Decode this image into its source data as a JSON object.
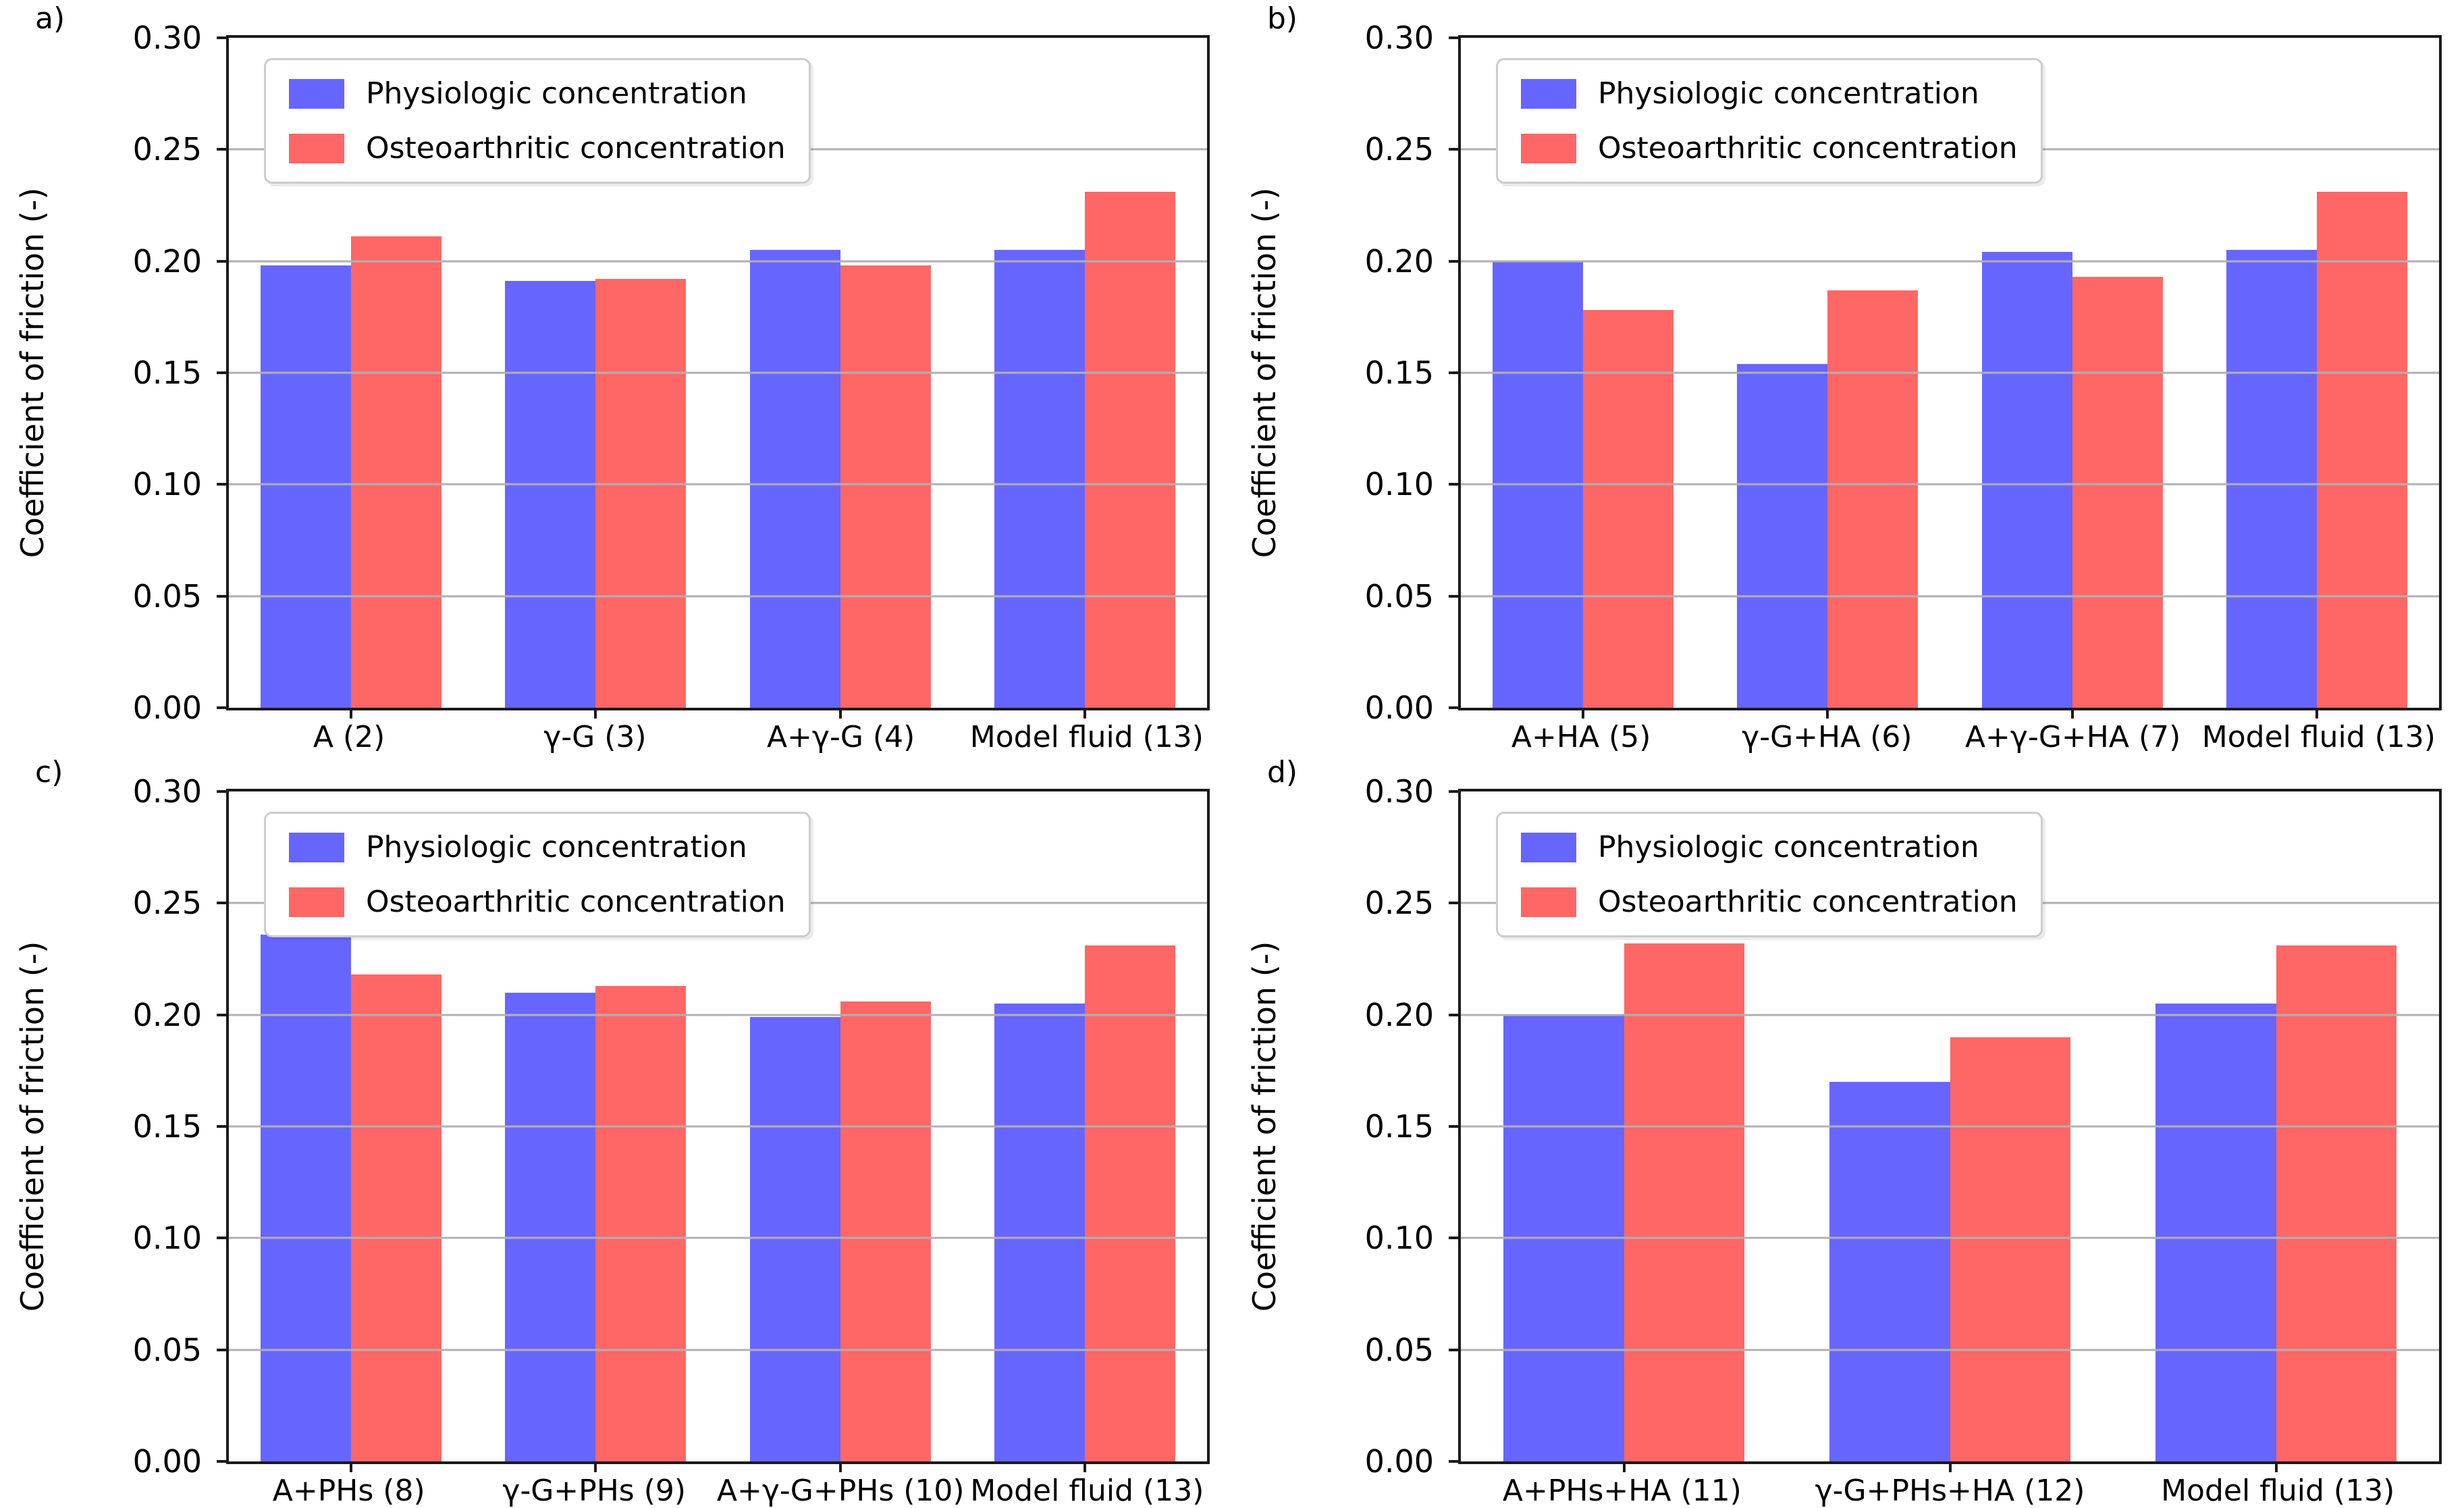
{
  "figure": {
    "ylabel": "Coefficient of friction (-)",
    "legend": {
      "items": [
        {
          "label": "Physiologic concentration",
          "color": "#6666ff"
        },
        {
          "label": "Osteoarthritic concentration",
          "color": "#ff6666"
        }
      ],
      "position": "upper left"
    },
    "colors": {
      "physiologic": "#6666ff",
      "osteoarthritic": "#ff6666",
      "gridline": "#b0b0b0",
      "spine": "#1a1a1a",
      "background": "#ffffff"
    }
  },
  "chart_data": [
    {
      "panel_label": "a)",
      "type": "bar",
      "title": "",
      "xlabel": "",
      "ylabel": "Coefficient of friction (-)",
      "ylim": [
        0.0,
        0.3
      ],
      "yticks": [
        0.0,
        0.05,
        0.1,
        0.15,
        0.2,
        0.25,
        0.3
      ],
      "grid": true,
      "legend_position": "upper left",
      "categories": [
        "A (2)",
        "γ-G (3)",
        "A+γ-G (4)",
        "Model fluid (13)"
      ],
      "series": [
        {
          "name": "Physiologic concentration",
          "color": "#6666ff",
          "values": [
            0.198,
            0.191,
            0.205,
            0.205
          ]
        },
        {
          "name": "Osteoarthritic concentration",
          "color": "#ff6666",
          "values": [
            0.211,
            0.192,
            0.198,
            0.231
          ]
        }
      ]
    },
    {
      "panel_label": "b)",
      "type": "bar",
      "title": "",
      "xlabel": "",
      "ylabel": "Coefficient of friction (-)",
      "ylim": [
        0.0,
        0.3
      ],
      "yticks": [
        0.0,
        0.05,
        0.1,
        0.15,
        0.2,
        0.25,
        0.3
      ],
      "grid": true,
      "legend_position": "upper left",
      "categories": [
        "A+HA (5)",
        "γ-G+HA (6)",
        "A+γ-G+HA (7)",
        "Model fluid (13)"
      ],
      "series": [
        {
          "name": "Physiologic concentration",
          "color": "#6666ff",
          "values": [
            0.2,
            0.154,
            0.204,
            0.205
          ]
        },
        {
          "name": "Osteoarthritic concentration",
          "color": "#ff6666",
          "values": [
            0.178,
            0.187,
            0.193,
            0.231
          ]
        }
      ]
    },
    {
      "panel_label": "c)",
      "type": "bar",
      "title": "",
      "xlabel": "",
      "ylabel": "Coefficient of friction (-)",
      "ylim": [
        0.0,
        0.3
      ],
      "yticks": [
        0.0,
        0.05,
        0.1,
        0.15,
        0.2,
        0.25,
        0.3
      ],
      "grid": true,
      "legend_position": "upper left",
      "categories": [
        "A+PHs (8)",
        "γ-G+PHs (9)",
        "A+γ-G+PHs (10)",
        "Model fluid (13)"
      ],
      "series": [
        {
          "name": "Physiologic concentration",
          "color": "#6666ff",
          "values": [
            0.236,
            0.21,
            0.199,
            0.205
          ]
        },
        {
          "name": "Osteoarthritic concentration",
          "color": "#ff6666",
          "values": [
            0.218,
            0.213,
            0.206,
            0.231
          ]
        }
      ]
    },
    {
      "panel_label": "d)",
      "type": "bar",
      "title": "",
      "xlabel": "",
      "ylabel": "Coefficient of friction (-)",
      "ylim": [
        0.0,
        0.3
      ],
      "yticks": [
        0.0,
        0.05,
        0.1,
        0.15,
        0.2,
        0.25,
        0.3
      ],
      "grid": true,
      "legend_position": "upper left",
      "categories": [
        "A+PHs+HA (11)",
        "γ-G+PHs+HA (12)",
        "Model fluid (13)"
      ],
      "series": [
        {
          "name": "Physiologic concentration",
          "color": "#6666ff",
          "values": [
            0.2,
            0.17,
            0.205
          ]
        },
        {
          "name": "Osteoarthritic concentration",
          "color": "#ff6666",
          "values": [
            0.232,
            0.19,
            0.231
          ]
        }
      ]
    }
  ]
}
